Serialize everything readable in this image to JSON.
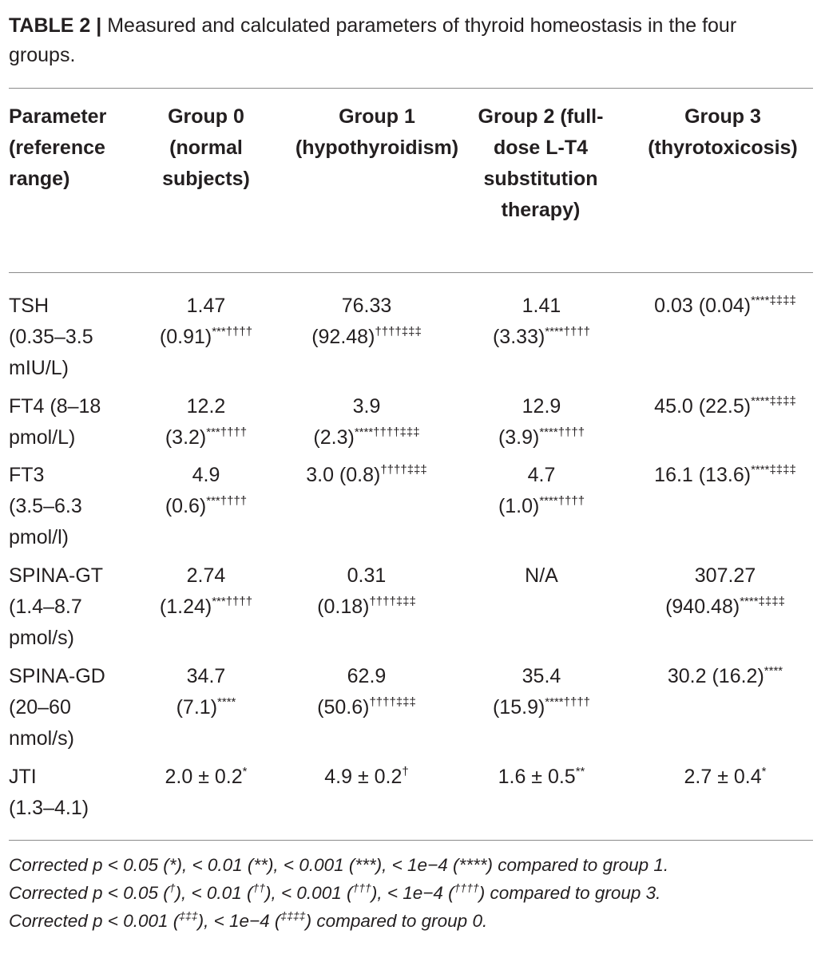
{
  "caption": {
    "label": "TABLE 2 |",
    "text": "Measured and calculated parameters of thyroid homeostasis in the four groups."
  },
  "headers": [
    "Parameter (reference range)",
    "Group 0 (normal subjects)",
    "Group 1 (hypothyroidism)",
    "Group 2 (full-dose L-T4 substitution therapy)",
    "Group 3 (thyrotoxicosis)"
  ],
  "rows": [
    {
      "param": [
        "TSH",
        "(0.35–3.5",
        "mIU/L)"
      ],
      "g0": [
        "1.47",
        "(0.91)"
      ],
      "g0_sup": "***††††",
      "g1": [
        "76.33",
        "(92.48)"
      ],
      "g1_sup": "††††‡‡‡",
      "g2": [
        "1.41",
        "(3.33)"
      ],
      "g2_sup": "****††††",
      "g3": [
        "0.03 (0.04)"
      ],
      "g3_sup": "****‡‡‡‡"
    },
    {
      "param": [
        "FT4 (8–18",
        "pmol/L)"
      ],
      "g0": [
        "12.2",
        "(3.2)"
      ],
      "g0_sup": "***††††",
      "g1": [
        "3.9",
        "(2.3)"
      ],
      "g1_sup": "****††††‡‡‡",
      "g2": [
        "12.9",
        "(3.9)"
      ],
      "g2_sup": "****††††",
      "g3": [
        "45.0 (22.5)"
      ],
      "g3_sup": "****‡‡‡‡"
    },
    {
      "param": [
        "FT3",
        "(3.5–6.3",
        "pmol/l)"
      ],
      "g0": [
        "4.9",
        "(0.6)"
      ],
      "g0_sup": "***††††",
      "g1": [
        "3.0 (0.8)"
      ],
      "g1_sup": "††††‡‡‡",
      "g2": [
        "4.7",
        "(1.0)"
      ],
      "g2_sup": "****††††",
      "g3": [
        "16.1 (13.6)"
      ],
      "g3_sup": "****‡‡‡‡"
    },
    {
      "param": [
        "SPINA-GT",
        "(1.4–8.7",
        "pmol/s)"
      ],
      "g0": [
        "2.74",
        "(1.24)"
      ],
      "g0_sup": "***††††",
      "g1": [
        "0.31",
        "(0.18)"
      ],
      "g1_sup": "††††‡‡‡",
      "g2": [
        "N/A"
      ],
      "g2_sup": "",
      "g3": [
        "307.27",
        "(940.48)"
      ],
      "g3_sup": "****‡‡‡‡"
    },
    {
      "param": [
        "SPINA-GD",
        "(20–60",
        "nmol/s)"
      ],
      "g0": [
        "34.7",
        "(7.1)"
      ],
      "g0_sup": "****",
      "g1": [
        "62.9",
        "(50.6)"
      ],
      "g1_sup": "††††‡‡‡",
      "g2": [
        "35.4",
        "(15.9)"
      ],
      "g2_sup": "****††††",
      "g3": [
        "30.2 (16.2)"
      ],
      "g3_sup": "****"
    },
    {
      "param": [
        "JTI",
        "(1.3–4.1)"
      ],
      "g0": [
        "2.0 ± 0.2"
      ],
      "g0_sup": "*",
      "g1": [
        "4.9 ± 0.2"
      ],
      "g1_sup": "†",
      "g2": [
        "1.6 ± 0.5"
      ],
      "g2_sup": "**",
      "g3": [
        "2.7 ± 0.4"
      ],
      "g3_sup": "*"
    }
  ],
  "footnotes": [
    {
      "parts": [
        [
          "t",
          "Corrected p < 0.05 ("
        ],
        [
          "t",
          "*"
        ],
        [
          "t",
          "), < 0.01 ("
        ],
        [
          "t",
          "**"
        ],
        [
          "t",
          "), < 0.001 ("
        ],
        [
          "t",
          "***"
        ],
        [
          "t",
          "), < 1e−4 ("
        ],
        [
          "t",
          "****"
        ],
        [
          "t",
          ") compared to group 1."
        ]
      ]
    },
    {
      "parts": [
        [
          "t",
          "Corrected p < 0.05 ("
        ],
        [
          "s",
          "†"
        ],
        [
          "t",
          "), < 0.01 ("
        ],
        [
          "s",
          "††"
        ],
        [
          "t",
          "), < 0.001 ("
        ],
        [
          "s",
          "†††"
        ],
        [
          "t",
          "), < 1e−4 ("
        ],
        [
          "s",
          "††††"
        ],
        [
          "t",
          ") compared to group 3."
        ]
      ]
    },
    {
      "parts": [
        [
          "t",
          "Corrected p < 0.001 ("
        ],
        [
          "s",
          "‡‡‡"
        ],
        [
          "t",
          "), < 1e−4 ("
        ],
        [
          "s",
          "‡‡‡‡"
        ],
        [
          "t",
          ") compared to group 0."
        ]
      ]
    }
  ]
}
